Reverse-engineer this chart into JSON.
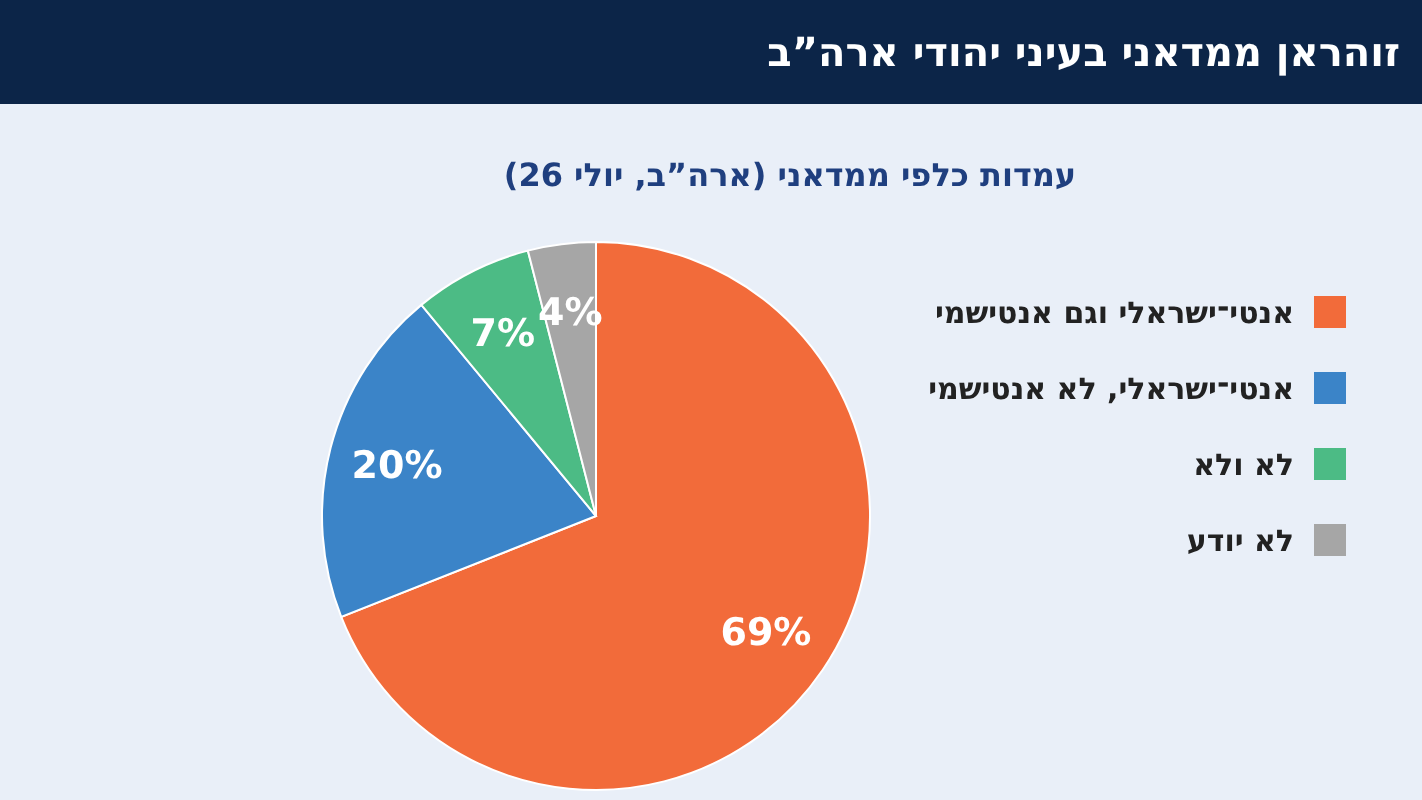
{
  "chart_data": {
    "type": "pie",
    "title": "זוהראן ממדאני בעיני יהודי ארה”ב",
    "subtitle": "עמדות כלפי ממדאני (ארה”ב, יולי 26)",
    "categories": [
      "אנטי־ישראלי וגם אנטישמי",
      "אנטי־ישראלי, לא אנטישמי",
      "לא ולא",
      "לא יודע"
    ],
    "values": [
      69,
      20,
      7,
      4
    ],
    "colors": [
      "#f26b3a",
      "#3b84c8",
      "#4cbb85",
      "#a6a6a6"
    ],
    "value_labels": [
      "69%",
      "20%",
      "7%",
      "4%"
    ],
    "legend": "right"
  }
}
